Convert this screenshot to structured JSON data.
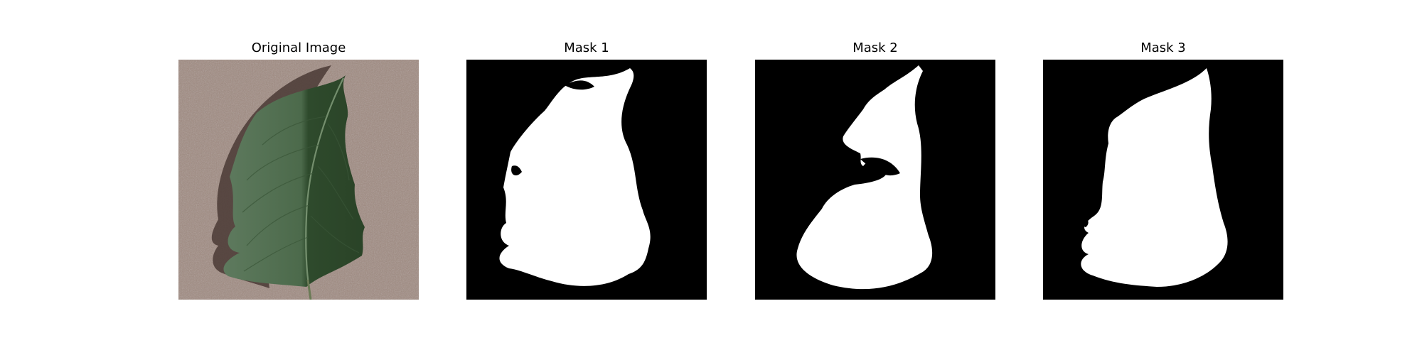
{
  "figure": {
    "background": "#ffffff",
    "panels": [
      {
        "id": "original",
        "title": "Original Image",
        "content": "leaf-photo"
      },
      {
        "id": "mask1",
        "title": "Mask 1",
        "content": "binary-mask"
      },
      {
        "id": "mask2",
        "title": "Mask 2",
        "content": "binary-mask"
      },
      {
        "id": "mask3",
        "title": "Mask 3",
        "content": "binary-mask"
      }
    ]
  },
  "colors": {
    "ground": "#a08a80",
    "leaf_dark": "#2e4a2c",
    "leaf_light": "#5e7a5e",
    "shadow": "#4a3a35",
    "mask_fg": "#ffffff",
    "mask_bg": "#000000"
  }
}
